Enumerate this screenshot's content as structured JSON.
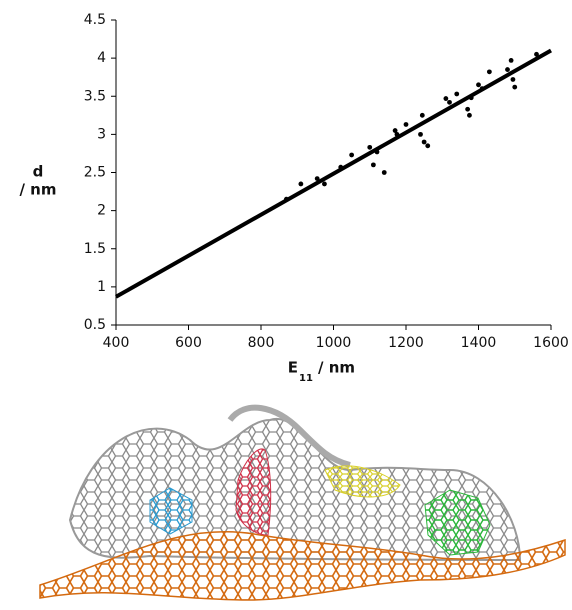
{
  "chart_data": {
    "type": "scatter",
    "ylabel": [
      "d",
      "/ nm"
    ],
    "xlabel": {
      "main": "E",
      "sub": "11",
      "unit": "/  nm"
    },
    "xlim": [
      400,
      1600
    ],
    "xticks": [
      400,
      600,
      800,
      1000,
      1200,
      1400,
      1600
    ],
    "ylim": [
      0.5,
      4.5
    ],
    "yticks": [
      0.5,
      1,
      1.5,
      2,
      2.5,
      3,
      3.5,
      4,
      4.5
    ],
    "grid": false,
    "series": [
      {
        "type": "scatter",
        "color": "#000000",
        "x": [
          870,
          910,
          955,
          975,
          1020,
          1050,
          1100,
          1110,
          1120,
          1140,
          1170,
          1175,
          1200,
          1240,
          1245,
          1250,
          1260,
          1310,
          1320,
          1340,
          1370,
          1375,
          1380,
          1400,
          1410,
          1430,
          1480,
          1490,
          1495,
          1500,
          1560
        ],
        "values": [
          2.15,
          2.35,
          2.42,
          2.35,
          2.57,
          2.73,
          2.83,
          2.6,
          2.77,
          2.5,
          3.05,
          3.0,
          3.13,
          3.0,
          3.25,
          2.9,
          2.85,
          3.47,
          3.42,
          3.53,
          3.33,
          3.25,
          3.48,
          3.65,
          3.6,
          3.82,
          3.85,
          3.97,
          3.72,
          3.62,
          4.05
        ]
      },
      {
        "type": "line",
        "color": "#000000",
        "x": [
          400,
          1600
        ],
        "values": [
          0.87,
          4.1
        ]
      }
    ]
  }
}
